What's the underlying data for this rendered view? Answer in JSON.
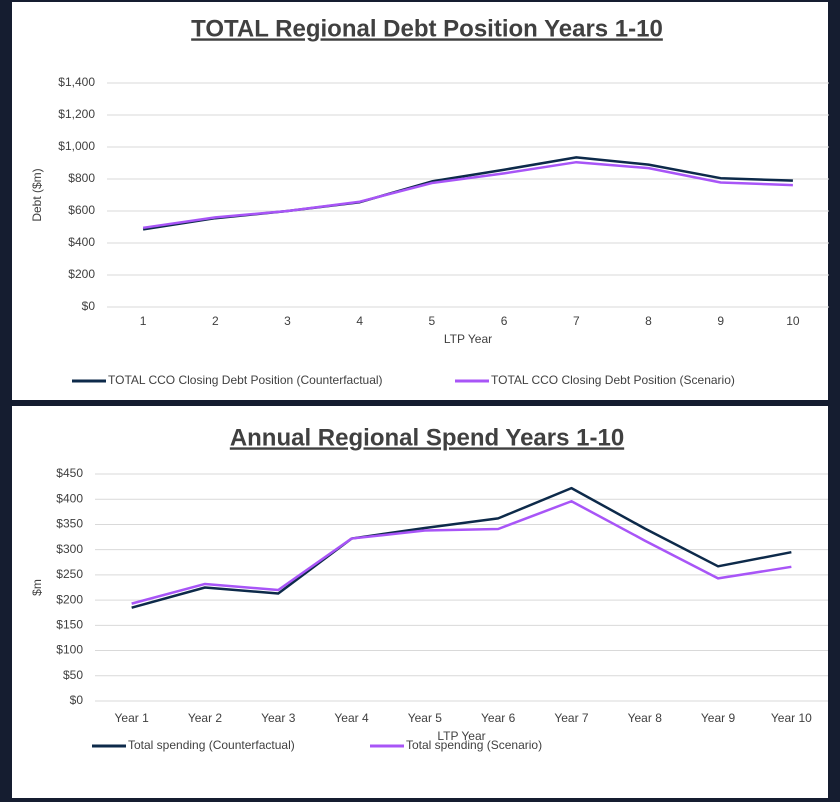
{
  "chart_data": [
    {
      "type": "line",
      "title": "TOTAL Regional Debt Position Years 1-10",
      "x_label": "LTP Year",
      "y_label": "Debt ($m)",
      "categories": [
        "1",
        "2",
        "3",
        "4",
        "5",
        "6",
        "7",
        "8",
        "9",
        "10"
      ],
      "series": [
        {
          "name": "TOTAL CCO Closing Debt Position (Counterfactual)",
          "color": "#0d2a4a",
          "values": [
            485,
            555,
            600,
            655,
            785,
            858,
            935,
            890,
            805,
            790
          ]
        },
        {
          "name": "TOTAL CCO Closing Debt Position (Scenario)",
          "color": "#a855f7",
          "values": [
            495,
            560,
            600,
            658,
            775,
            835,
            905,
            868,
            778,
            762
          ]
        }
      ],
      "ylim": [
        0,
        1400
      ],
      "yticks": [
        {
          "value": 0,
          "label": "$0"
        },
        {
          "value": 200,
          "label": "$200"
        },
        {
          "value": 400,
          "label": "$400"
        },
        {
          "value": 600,
          "label": "$600"
        },
        {
          "value": 800,
          "label": "$800"
        },
        {
          "value": 1000,
          "label": "$1,000"
        },
        {
          "value": 1200,
          "label": "$1,200"
        },
        {
          "value": 1400,
          "label": "$1,400"
        }
      ],
      "grid": true,
      "legend": "bottom"
    },
    {
      "type": "line",
      "title": "Annual Regional Spend Years 1-10",
      "x_label": "LTP Year",
      "y_label": "$m",
      "categories": [
        "Year 1",
        "Year 2",
        "Year 3",
        "Year 4",
        "Year 5",
        "Year 6",
        "Year 7",
        "Year 8",
        "Year 9",
        "Year 10"
      ],
      "series": [
        {
          "name": "Total spending (Counterfactual)",
          "color": "#0d2a4a",
          "values": [
            185,
            225,
            213,
            322,
            343,
            362,
            422,
            342,
            267,
            295
          ]
        },
        {
          "name": "Total spending (Scenario)",
          "color": "#a855f7",
          "values": [
            193,
            232,
            220,
            322,
            338,
            341,
            396,
            318,
            243,
            266
          ]
        }
      ],
      "ylim": [
        0,
        450
      ],
      "yticks": [
        {
          "value": 0,
          "label": "$0"
        },
        {
          "value": 50,
          "label": "$50"
        },
        {
          "value": 100,
          "label": "$100"
        },
        {
          "value": 150,
          "label": "$150"
        },
        {
          "value": 200,
          "label": "$200"
        },
        {
          "value": 250,
          "label": "$250"
        },
        {
          "value": 300,
          "label": "$300"
        },
        {
          "value": 350,
          "label": "$350"
        },
        {
          "value": 400,
          "label": "$400"
        },
        {
          "value": 450,
          "label": "$450"
        }
      ],
      "grid": true,
      "legend": "bottom"
    }
  ]
}
